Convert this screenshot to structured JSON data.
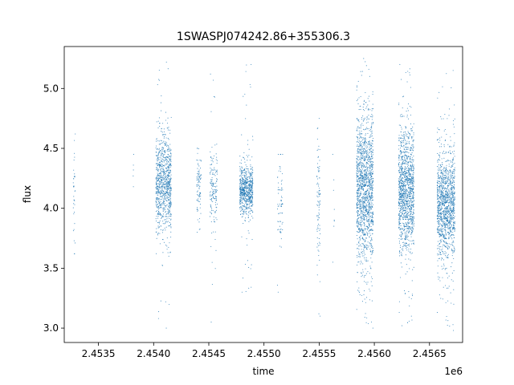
{
  "chart_data": {
    "type": "scatter",
    "title": "1SWASPJ074242.86+355306.3",
    "xlabel": "time",
    "ylabel": "flux",
    "x_offset_label": "1e6",
    "xlim": [
      2453190,
      2456800
    ],
    "ylim": [
      2.88,
      5.35
    ],
    "x_ticks": [
      2453500,
      2454000,
      2454500,
      2455000,
      2455500,
      2456000,
      2456500
    ],
    "x_tick_labels": [
      "2.4535",
      "2.4540",
      "2.4545",
      "2.4550",
      "2.4555",
      "2.4560",
      "2.4565"
    ],
    "y_ticks": [
      3.0,
      3.5,
      4.0,
      4.5,
      5.0
    ],
    "y_tick_labels": [
      "3.0",
      "3.5",
      "4.0",
      "4.5",
      "5.0"
    ],
    "grid": false,
    "marker_color": "#1f77b4",
    "series": [
      {
        "segments": [
          {
            "x_start": 2453270,
            "x_end": 2453290,
            "center": 4.12,
            "spread": 0.22,
            "ymin": 3.62,
            "ymax": 4.62,
            "points": 35
          },
          {
            "x_start": 2453810,
            "x_end": 2453820,
            "center": 4.3,
            "spread": 0.08,
            "ymin": 4.18,
            "ymax": 4.45,
            "points": 5
          },
          {
            "x_start": 2454020,
            "x_end": 2454160,
            "center": 4.2,
            "spread": 0.2,
            "ymin": 3.0,
            "ymax": 5.22,
            "points": 900
          },
          {
            "x_start": 2454390,
            "x_end": 2454430,
            "center": 4.2,
            "spread": 0.12,
            "ymin": 3.8,
            "ymax": 4.5,
            "points": 90
          },
          {
            "x_start": 2454510,
            "x_end": 2454580,
            "center": 4.15,
            "spread": 0.16,
            "ymin": 3.05,
            "ymax": 5.12,
            "points": 160
          },
          {
            "x_start": 2454780,
            "x_end": 2454900,
            "center": 4.15,
            "spread": 0.1,
            "ymin": 3.3,
            "ymax": 5.2,
            "points": 700
          },
          {
            "x_start": 2455120,
            "x_end": 2455170,
            "center": 4.05,
            "spread": 0.18,
            "ymin": 3.3,
            "ymax": 4.45,
            "points": 70
          },
          {
            "x_start": 2455480,
            "x_end": 2455510,
            "center": 4.05,
            "spread": 0.25,
            "ymin": 3.1,
            "ymax": 4.75,
            "points": 90
          },
          {
            "x_start": 2455620,
            "x_end": 2455640,
            "center": 4.05,
            "spread": 0.15,
            "ymin": 3.55,
            "ymax": 4.45,
            "points": 8
          },
          {
            "x_start": 2455840,
            "x_end": 2455990,
            "center": 4.15,
            "spread": 0.3,
            "ymin": 3.0,
            "ymax": 5.25,
            "points": 1500
          },
          {
            "x_start": 2456220,
            "x_end": 2456360,
            "center": 4.15,
            "spread": 0.25,
            "ymin": 3.02,
            "ymax": 5.2,
            "points": 1300
          },
          {
            "x_start": 2456570,
            "x_end": 2456730,
            "center": 4.02,
            "spread": 0.22,
            "ymin": 2.98,
            "ymax": 5.15,
            "points": 1300
          }
        ]
      }
    ]
  }
}
